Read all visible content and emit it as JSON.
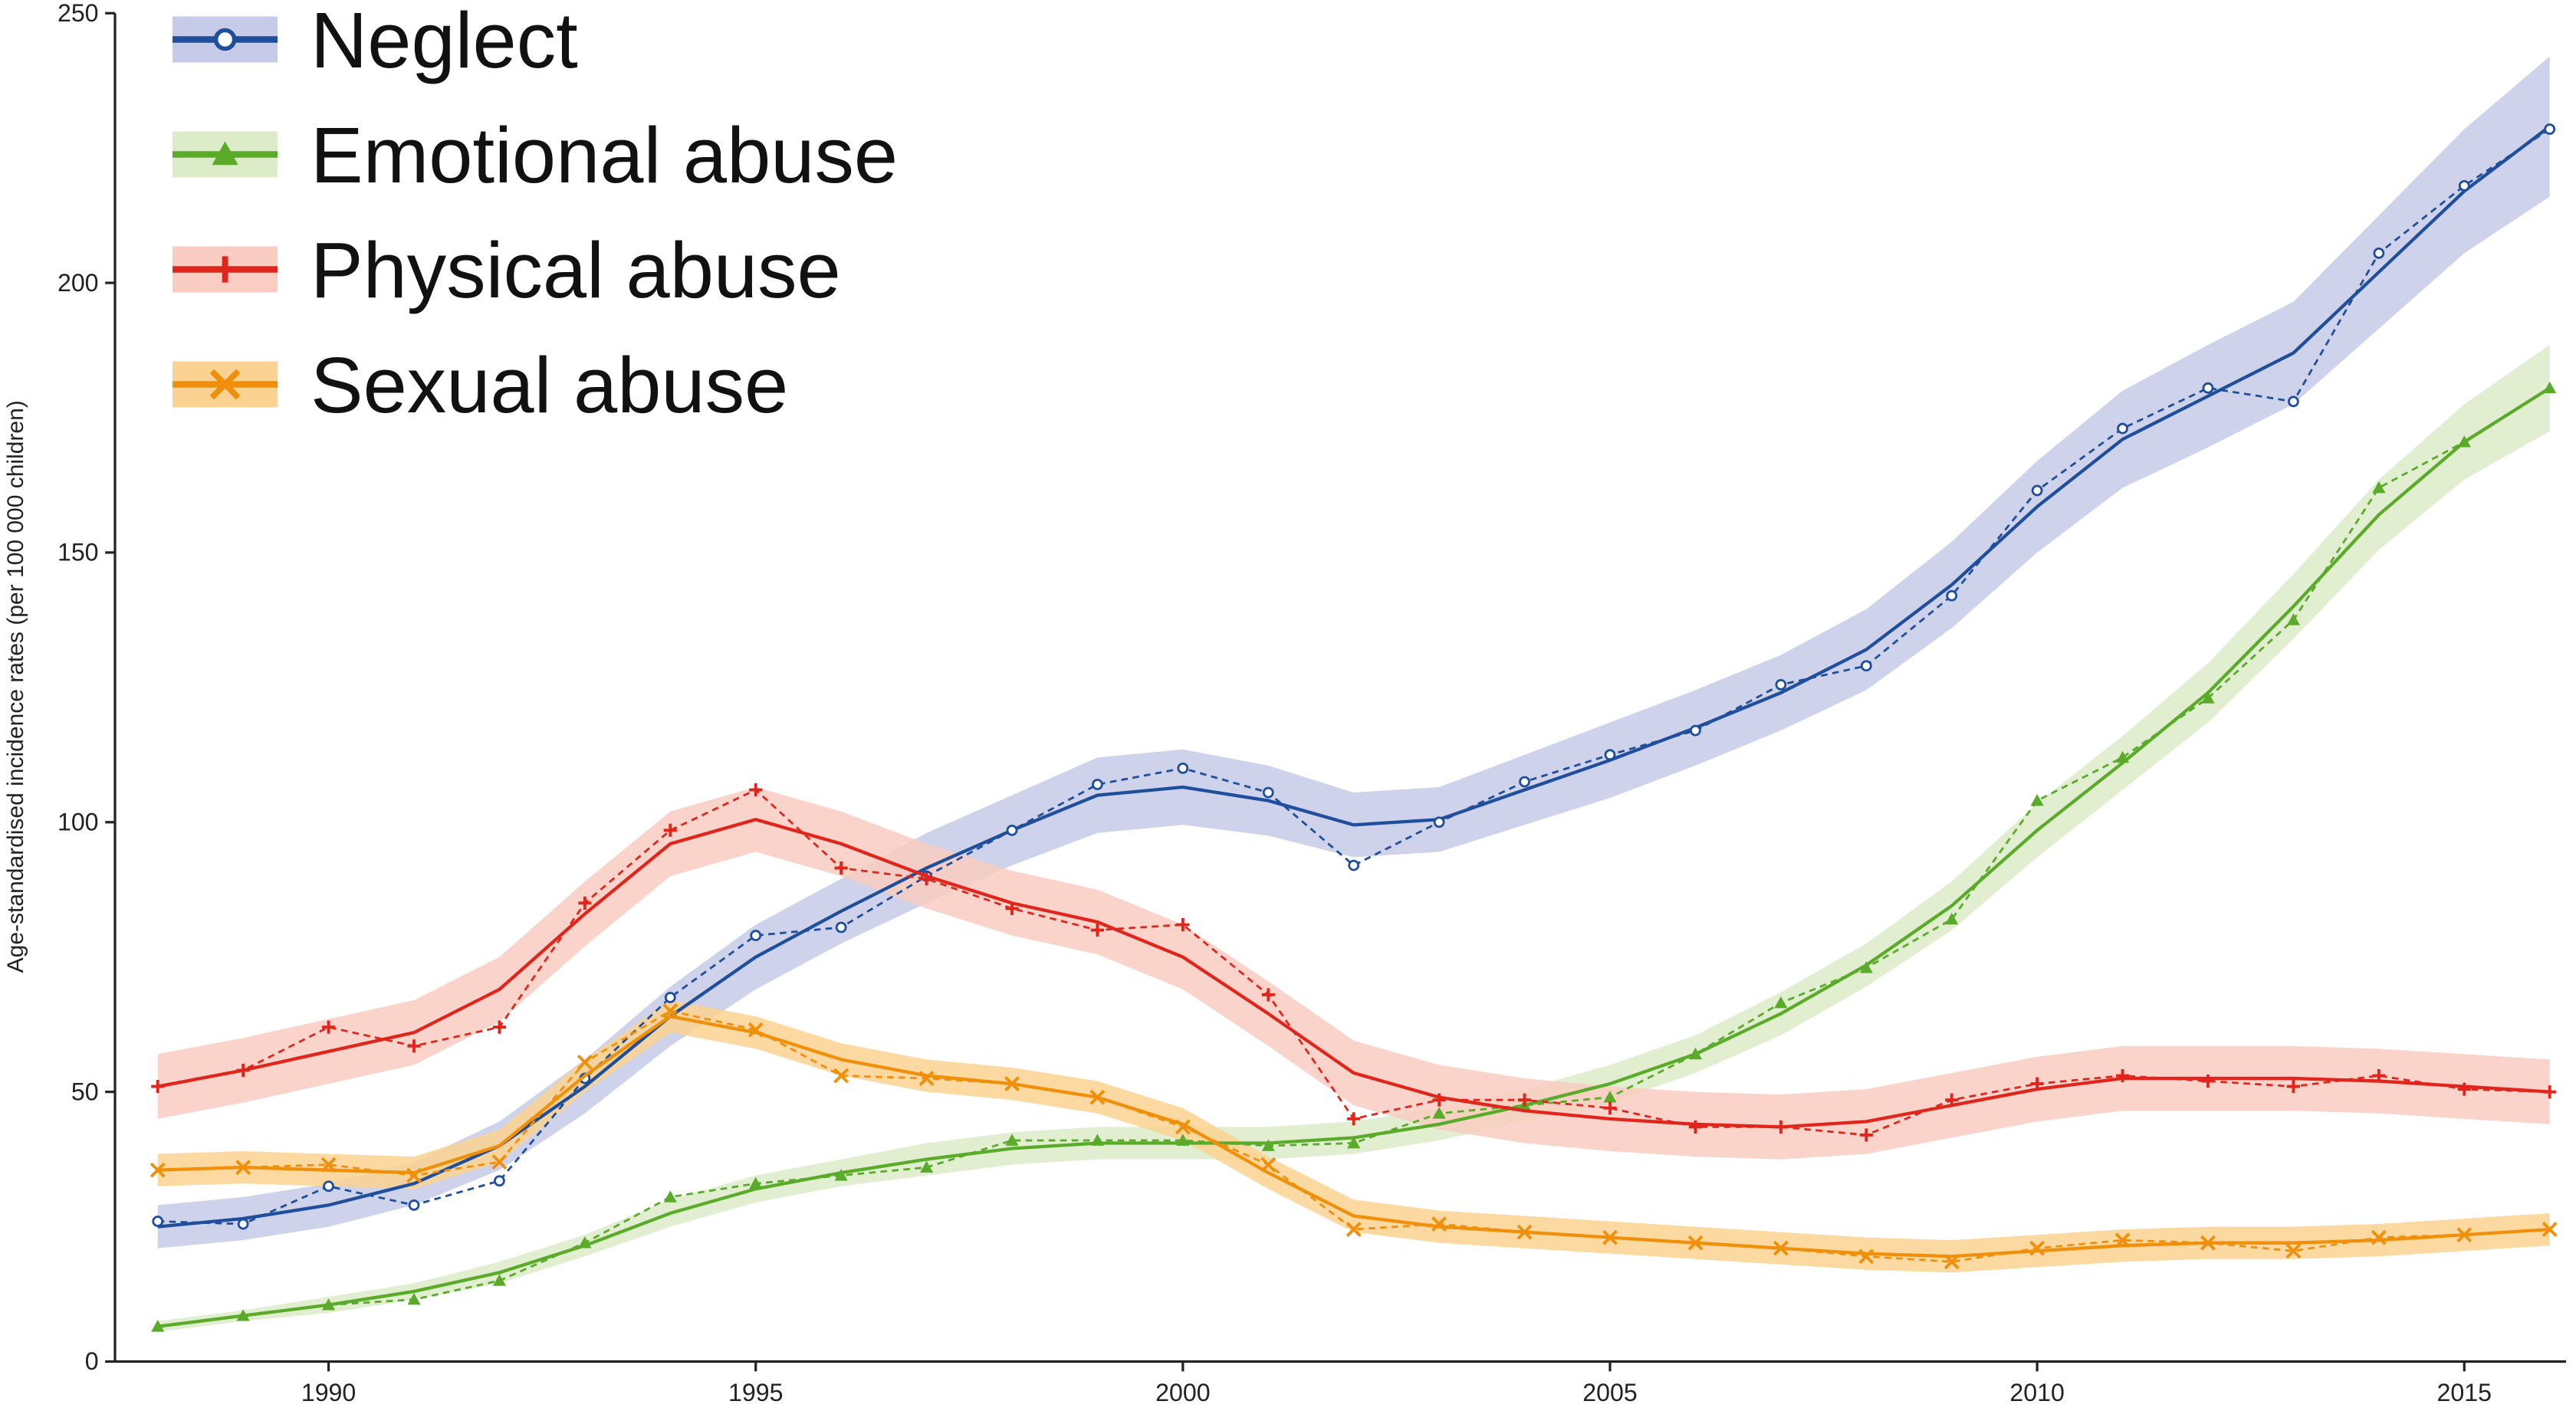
{
  "chart_data": {
    "type": "line",
    "y_label": "Age-standardised incidence rates (per 100 000 children)",
    "x": [
      1988,
      1989,
      1990,
      1991,
      1992,
      1993,
      1994,
      1995,
      1996,
      1997,
      1998,
      1999,
      2000,
      2001,
      2002,
      2003,
      2004,
      2005,
      2006,
      2007,
      2008,
      2009,
      2010,
      2011,
      2012,
      2013,
      2014,
      2015,
      2016
    ],
    "xlim": [
      1987.5,
      2016
    ],
    "xticks": [
      1990,
      1995,
      2000,
      2005,
      2010,
      2015
    ],
    "ylim": [
      0,
      250
    ],
    "yticks": [
      0,
      50,
      100,
      150,
      200,
      250
    ],
    "legend": "top-left",
    "series": [
      {
        "name": "Neglect",
        "color": "#1f4e9c",
        "band_color": "#c5cbe8",
        "marker": "circle",
        "values": [
          25,
          26.5,
          29,
          33,
          40,
          51,
          64,
          75,
          83.5,
          91.5,
          98.5,
          105,
          106.5,
          104,
          99.5,
          100.5,
          106,
          111.5,
          117.5,
          124,
          132,
          144,
          158.5,
          171,
          179,
          187,
          202,
          217,
          229
        ],
        "observed": [
          26,
          25.5,
          32.5,
          29,
          33.5,
          52.5,
          67.5,
          79,
          80.5,
          90,
          98.5,
          107,
          110,
          105.5,
          92,
          100,
          107.5,
          112.5,
          117,
          125.5,
          129,
          142,
          161.5,
          173,
          180.5,
          178,
          205.5,
          218,
          228.5
        ],
        "lower": [
          21,
          22.5,
          25,
          29,
          35.5,
          46,
          58.5,
          69,
          77.5,
          85,
          92,
          98,
          99.5,
          97.5,
          93.5,
          94.5,
          99.5,
          104.5,
          110.5,
          117,
          124.5,
          136,
          150,
          162,
          169.5,
          177.5,
          191.5,
          205.5,
          216
        ],
        "upper": [
          29,
          30.5,
          33,
          37,
          44.5,
          56,
          69.5,
          81,
          89.5,
          98,
          105,
          112,
          113.5,
          110.5,
          105.5,
          106.5,
          112.5,
          118.5,
          124.5,
          131,
          139.5,
          152,
          167,
          180,
          188.5,
          196.5,
          212.5,
          228.5,
          242
        ]
      },
      {
        "name": "Emotional abuse",
        "color": "#5aab2a",
        "band_color": "#dcebc8",
        "marker": "triangle",
        "values": [
          6.5,
          8.5,
          10.5,
          13,
          16.5,
          21.5,
          27.5,
          32,
          35,
          37.5,
          39.5,
          40.5,
          40.5,
          40.5,
          41.5,
          44,
          47.5,
          51.5,
          57,
          64.5,
          73.5,
          84.5,
          98.5,
          111,
          124,
          140,
          157,
          170.5,
          180.5
        ],
        "observed": [
          6.5,
          8.5,
          10.5,
          11.5,
          15,
          22,
          30.5,
          33,
          34.5,
          36,
          41,
          41,
          41,
          40,
          40.5,
          46,
          47.5,
          49,
          57,
          66.5,
          73,
          82,
          104,
          112,
          123,
          137.5,
          162,
          170.5,
          180.5
        ],
        "lower": [
          5.5,
          7.5,
          9,
          11.5,
          14.5,
          19.5,
          25,
          29.5,
          32.5,
          34.5,
          36.5,
          37.5,
          37.5,
          37.5,
          38.5,
          41,
          44.5,
          48,
          53.5,
          60.5,
          69.5,
          80,
          93.5,
          106,
          118.5,
          134,
          150.5,
          163.5,
          172.5
        ],
        "upper": [
          7.5,
          9.5,
          12,
          14.5,
          18.5,
          23.5,
          30,
          34.5,
          37.5,
          40.5,
          42.5,
          43.5,
          43.5,
          43.5,
          44.5,
          47,
          50.5,
          55,
          60.5,
          68.5,
          77.5,
          89,
          103.5,
          116,
          129.5,
          146,
          163.5,
          177.5,
          188.5
        ]
      },
      {
        "name": "Physical abuse",
        "color": "#e0261c",
        "band_color": "#f9cdc1",
        "marker": "plus",
        "values": [
          51,
          54,
          57.5,
          61,
          69,
          83,
          96,
          100.5,
          96,
          90,
          85,
          81.5,
          75,
          64.5,
          53.5,
          49,
          46.5,
          45,
          44,
          43.5,
          44.5,
          47.5,
          50.5,
          52.5,
          52.5,
          52.5,
          52,
          51,
          50
        ],
        "observed": [
          51,
          54,
          62,
          58.5,
          62,
          85,
          98.5,
          106,
          91.5,
          89.5,
          84,
          80,
          81,
          68,
          45,
          48.5,
          48.5,
          47,
          43.5,
          43.5,
          42,
          48.5,
          51.5,
          53,
          52,
          51,
          53,
          50.5,
          50
        ],
        "lower": [
          45,
          48,
          51.5,
          55,
          63,
          77,
          90,
          94.5,
          90,
          84,
          79,
          75.5,
          69,
          58.5,
          47.5,
          43,
          40.5,
          39,
          38,
          37.5,
          38.5,
          41.5,
          44.5,
          46.5,
          46.5,
          46.5,
          46,
          45,
          44
        ],
        "upper": [
          57,
          60,
          63.5,
          67,
          75,
          89,
          102,
          106.5,
          102,
          96,
          91,
          87.5,
          81,
          70.5,
          59.5,
          55,
          52.5,
          51,
          50,
          49.5,
          50.5,
          53.5,
          56.5,
          58.5,
          58.5,
          58.5,
          58,
          57,
          56
        ]
      },
      {
        "name": "Sexual abuse",
        "color": "#f0900a",
        "band_color": "#fbd291",
        "marker": "cross",
        "values": [
          35.5,
          36,
          35.5,
          35,
          40,
          53,
          64,
          61,
          56,
          53,
          51.5,
          49,
          44,
          35,
          27,
          25,
          24,
          23,
          22,
          21,
          20,
          19.5,
          20.5,
          21.5,
          22,
          22,
          22.5,
          23.5,
          24.5
        ],
        "observed": [
          35.5,
          36,
          36.5,
          34.5,
          37,
          55.5,
          65,
          61.5,
          53,
          52.5,
          51.5,
          49,
          43.5,
          36.5,
          24.5,
          25.5,
          24,
          23,
          22,
          21,
          19.5,
          18.5,
          21,
          22.5,
          22,
          20.5,
          23,
          23.5,
          24.5
        ],
        "lower": [
          32.5,
          33,
          32.5,
          32,
          37,
          50,
          61,
          58,
          53,
          50,
          48.5,
          46,
          41,
          32,
          24,
          22,
          21,
          20,
          19,
          18,
          17,
          16.5,
          17.5,
          18.5,
          19,
          19,
          19.5,
          20.5,
          21.5
        ],
        "upper": [
          38.5,
          39,
          38.5,
          38,
          43,
          56,
          67,
          64,
          59,
          56,
          54.5,
          52,
          47,
          38,
          30,
          28,
          27,
          26,
          25,
          24,
          23,
          22.5,
          23.5,
          24.5,
          25,
          25,
          25.5,
          26.5,
          27.5
        ]
      }
    ]
  }
}
